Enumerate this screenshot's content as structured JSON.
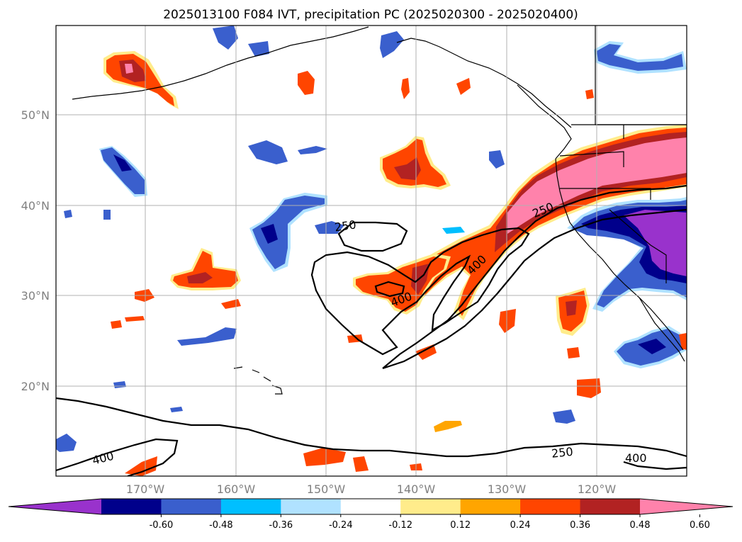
{
  "title": "2025013100 F084 IVT, precipitation PC (2025020300 - 2025020400)",
  "lat_labels": [
    {
      "label": "50°N",
      "lat": 50
    },
    {
      "label": "40°N",
      "lat": 40
    },
    {
      "label": "30°N",
      "lat": 30
    },
    {
      "label": "20°N",
      "lat": 20
    }
  ],
  "lon_labels": [
    {
      "label": "170°W",
      "lon": -170
    },
    {
      "label": "160°W",
      "lon": -160
    },
    {
      "label": "150°W",
      "lon": -150
    },
    {
      "label": "140°W",
      "lon": -140
    },
    {
      "label": "130°W",
      "lon": -130
    },
    {
      "label": "120°W",
      "lon": -120
    }
  ],
  "colorbar": {
    "ticks": [
      "-0.60",
      "-0.48",
      "-0.36",
      "-0.24",
      "-0.12",
      "0.12",
      "0.24",
      "0.36",
      "0.48",
      "0.60"
    ],
    "colors": [
      "#9932cc",
      "#00008b",
      "#3a5fcd",
      "#00bfff",
      "#b0e2ff",
      "#ffffff",
      "#ffec8b",
      "#ffa500",
      "#ff4500",
      "#b22222",
      "#ff82ab"
    ]
  },
  "contour_labels": [
    "250",
    "400",
    "400",
    "250",
    "400",
    "250",
    "400"
  ]
}
